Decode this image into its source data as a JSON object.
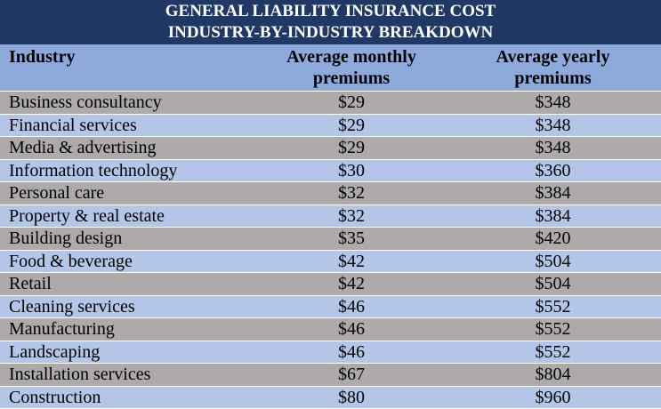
{
  "header": {
    "title": [
      "GENERAL LIABILITY INSURANCE COST",
      "INDUSTRY-BY-INDUSTRY BREAKDOWN"
    ]
  },
  "table": {
    "columns": [
      "Industry",
      "Average monthly premiums",
      "Average yearly premiums"
    ],
    "rows": [
      [
        "Business consultancy",
        "$29",
        "$348"
      ],
      [
        "Financial services",
        "$29",
        "$348"
      ],
      [
        "Media & advertising",
        "$29",
        "$348"
      ],
      [
        "Information technology",
        "$30",
        "$360"
      ],
      [
        "Personal care",
        "$32",
        "$384"
      ],
      [
        "Property & real estate",
        "$32",
        "$384"
      ],
      [
        "Building design",
        "$35",
        "$420"
      ],
      [
        "Food & beverage",
        "$42",
        "$504"
      ],
      [
        "Retail",
        "$42",
        "$504"
      ],
      [
        "Cleaning services",
        "$46",
        "$552"
      ],
      [
        "Manufacturing",
        "$46",
        "$552"
      ],
      [
        "Landscaping",
        "$46",
        "$552"
      ],
      [
        "Installation services",
        "$67",
        "$804"
      ],
      [
        "Construction",
        "$80",
        "$960"
      ]
    ]
  }
}
